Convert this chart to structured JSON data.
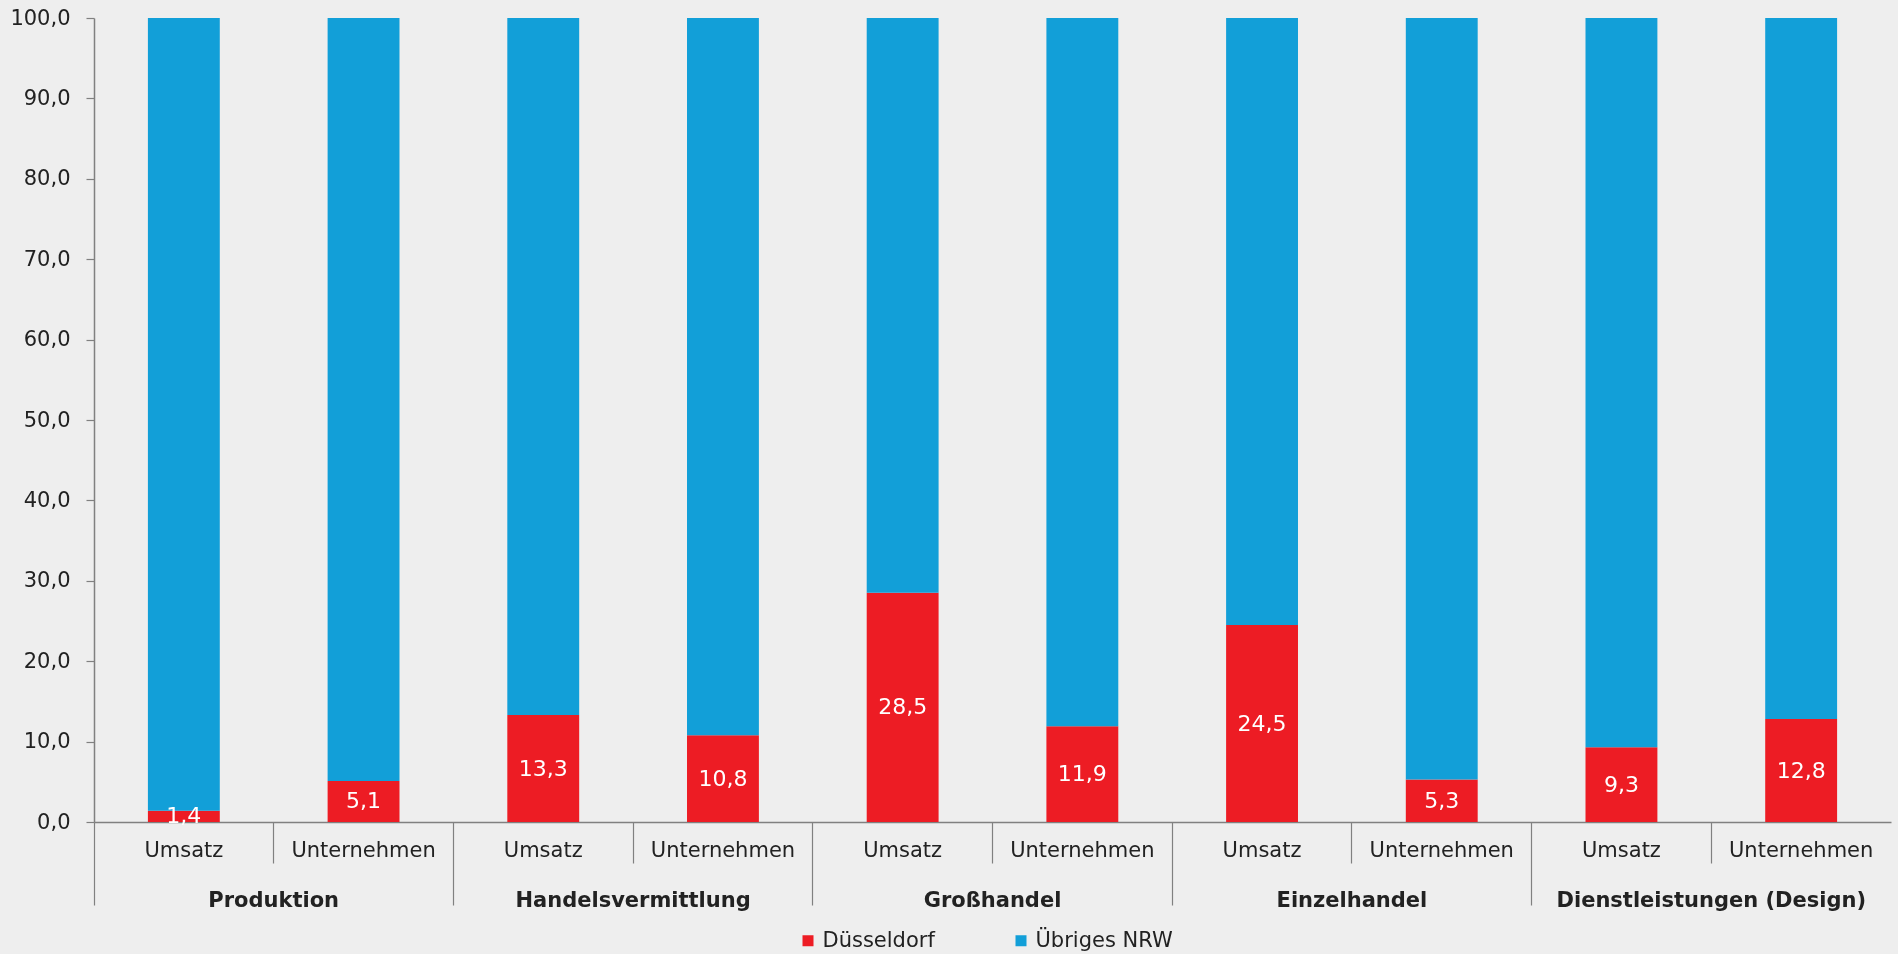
{
  "chart_data": {
    "type": "bar",
    "stacked": true,
    "categories": [
      "Umsatz",
      "Unternehmen",
      "Umsatz",
      "Unternehmen",
      "Umsatz",
      "Unternehmen",
      "Umsatz",
      "Unternehmen",
      "Umsatz",
      "Unternehmen"
    ],
    "annotations": [
      "Produktion",
      "Handelsvermittlung",
      "Großhandel",
      "Einzelhandel",
      "Dienstleistungen (Design)"
    ],
    "series": [
      {
        "name": "Düsseldorf",
        "color": "#ed1c24",
        "values": [
          1.4,
          5.1,
          13.3,
          10.8,
          28.5,
          11.9,
          24.5,
          5.3,
          9.3,
          12.8
        ],
        "value_labels": [
          "1,4",
          "5,1",
          "13,3",
          "10,8",
          "28,5",
          "11,9",
          "24,5",
          "5,3",
          "9,3",
          "12,8"
        ]
      },
      {
        "name": "Übriges NRW",
        "color": "#129fd8",
        "values": [
          98.6,
          94.9,
          86.7,
          89.2,
          71.5,
          88.1,
          75.5,
          94.7,
          90.7,
          87.2
        ]
      }
    ],
    "ylim": [
      0,
      100
    ],
    "yticks": [
      {
        "value": 0,
        "label": "0,0"
      },
      {
        "value": 10,
        "label": "10,0"
      },
      {
        "value": 20,
        "label": "20,0"
      },
      {
        "value": 30,
        "label": "30,0"
      },
      {
        "value": 40,
        "label": "40,0"
      },
      {
        "value": 50,
        "label": "50,0"
      },
      {
        "value": 60,
        "label": "60,0"
      },
      {
        "value": 70,
        "label": "70,0"
      },
      {
        "value": 80,
        "label": "80,0"
      },
      {
        "value": 90,
        "label": "90,0"
      },
      {
        "value": 100,
        "label": "100,0"
      }
    ],
    "grid": false,
    "legend": "bottom"
  }
}
